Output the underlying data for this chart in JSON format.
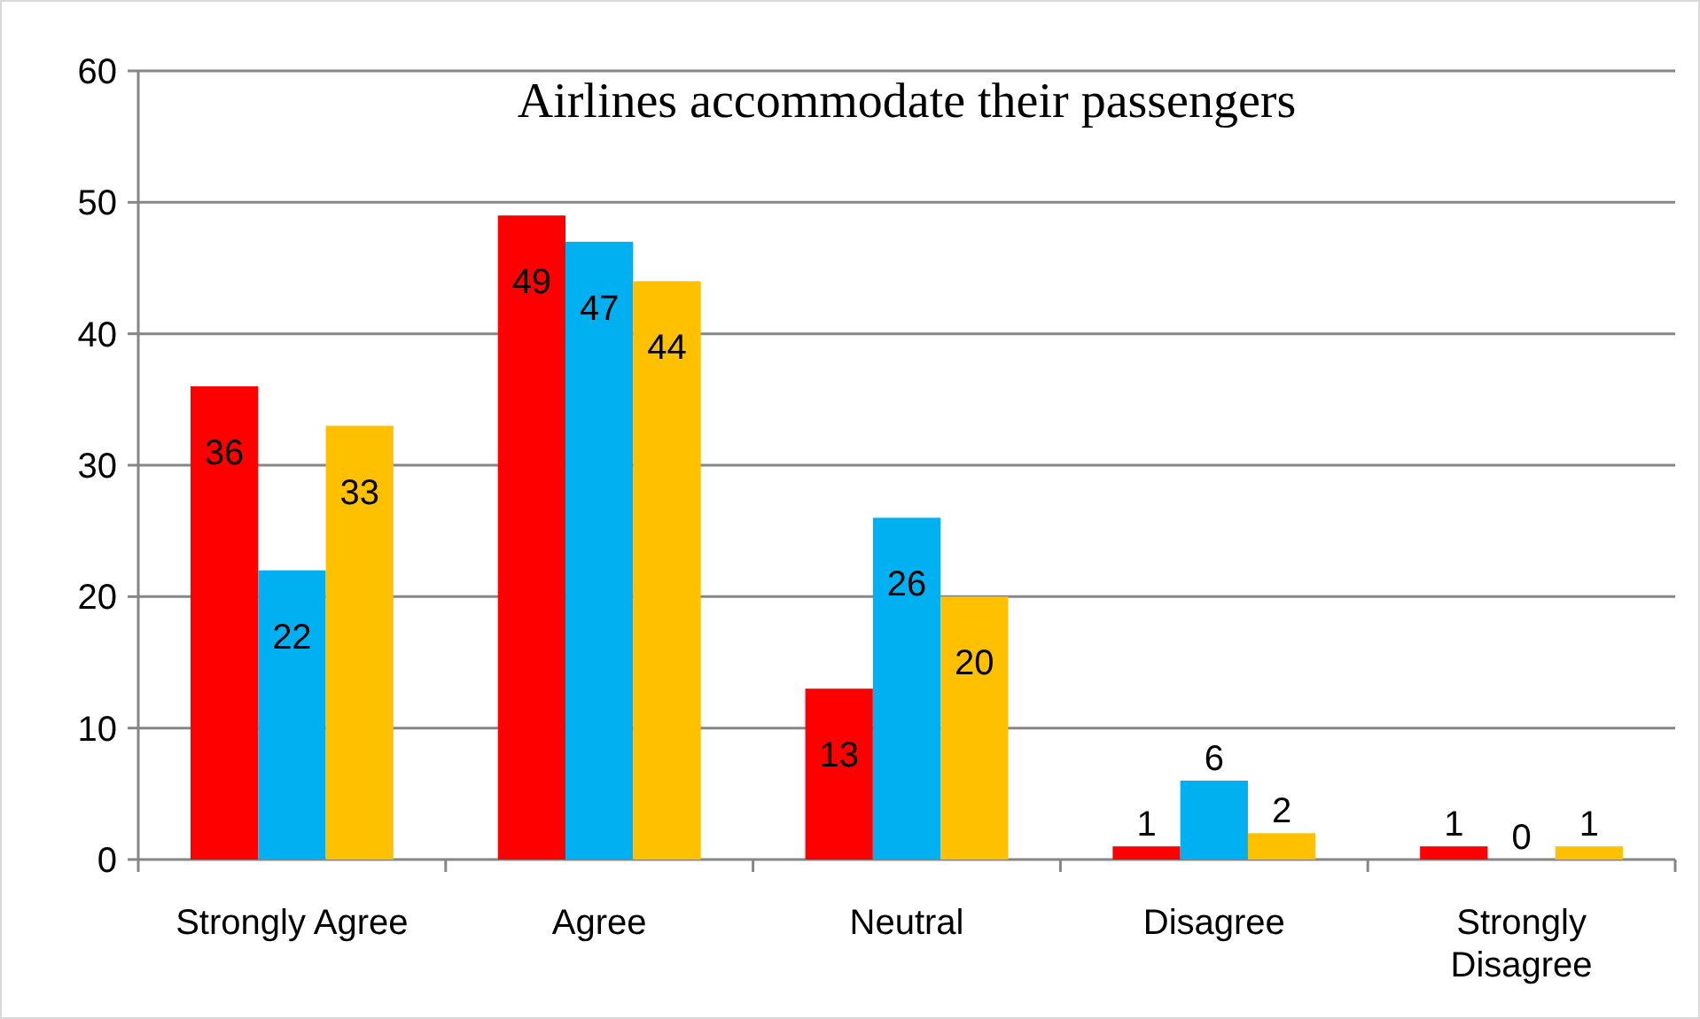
{
  "chart_data": {
    "type": "bar",
    "title": "Airlines accommodate their passengers",
    "categories": [
      "Strongly Agree",
      "Agree",
      "Neutral",
      "Disagree",
      "Strongly Disagree"
    ],
    "series": [
      {
        "color": "#ff0000",
        "values": [
          36,
          49,
          13,
          1,
          1
        ]
      },
      {
        "color": "#00b0f0",
        "values": [
          22,
          47,
          26,
          6,
          0
        ]
      },
      {
        "color": "#ffc000",
        "values": [
          33,
          44,
          20,
          2,
          1
        ]
      }
    ],
    "ylim": [
      0,
      60
    ],
    "yticks": [
      0,
      10,
      20,
      30,
      40,
      50,
      60
    ],
    "grid": "y",
    "data_labels": true
  }
}
